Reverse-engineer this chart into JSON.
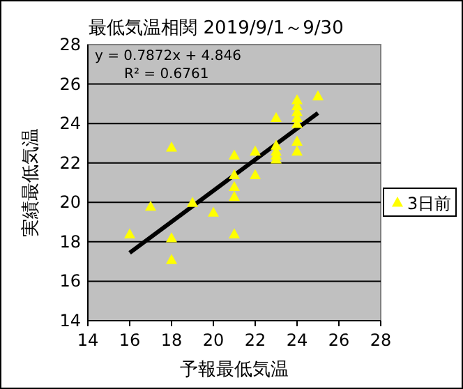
{
  "chart_data": {
    "type": "scatter",
    "title": "最低気温相関 2019/9/1～9/30",
    "xlabel": "予報最低気温",
    "ylabel": "実績最低気温",
    "annotations": [
      "y = 0.7872x + 4.846",
      "R² = 0.6761"
    ],
    "xlim": [
      14,
      28
    ],
    "xticks": [
      14,
      16,
      18,
      20,
      22,
      24,
      26,
      28
    ],
    "ylim": [
      14,
      28
    ],
    "yticks": [
      14,
      16,
      18,
      20,
      22,
      24,
      26,
      28
    ],
    "grid": "y",
    "legend": "right",
    "marker": "triangle",
    "series": [
      {
        "type": "line",
        "color": "#000000",
        "marker": "none",
        "x": [
          16,
          25
        ],
        "values": [
          17.44,
          24.53
        ]
      },
      {
        "name": "3日前",
        "color": "#ffff00",
        "type": "scatter",
        "x": [
          16,
          17,
          18,
          18,
          18,
          19,
          20,
          21,
          21,
          21,
          21,
          21,
          22,
          22,
          23,
          23,
          23,
          23,
          23,
          24,
          24,
          24,
          24,
          24,
          24,
          24,
          25
        ],
        "values": [
          18.4,
          19.8,
          22.8,
          18.2,
          17.1,
          20,
          19.5,
          22.4,
          21.4,
          20.8,
          20.3,
          18.4,
          22.6,
          21.4,
          24.3,
          22.9,
          22.6,
          22.4,
          22.2,
          25.2,
          24.9,
          24.6,
          24.3,
          24,
          23.1,
          22.6,
          25.4
        ]
      }
    ]
  }
}
